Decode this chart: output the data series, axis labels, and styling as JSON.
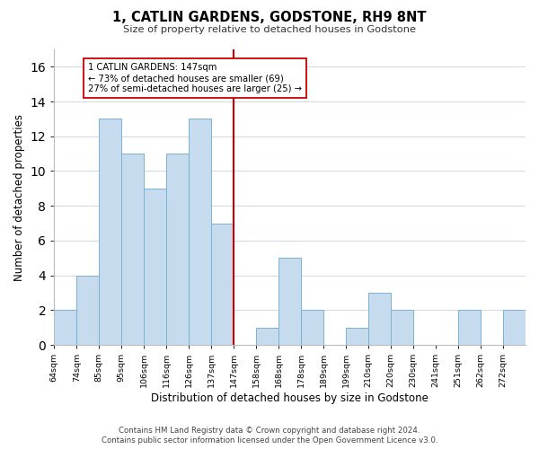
{
  "title": "1, CATLIN GARDENS, GODSTONE, RH9 8NT",
  "subtitle": "Size of property relative to detached houses in Godstone",
  "xlabel": "Distribution of detached houses by size in Godstone",
  "ylabel": "Number of detached properties",
  "bin_labels": [
    "64sqm",
    "74sqm",
    "85sqm",
    "95sqm",
    "106sqm",
    "116sqm",
    "126sqm",
    "137sqm",
    "147sqm",
    "158sqm",
    "168sqm",
    "178sqm",
    "189sqm",
    "199sqm",
    "210sqm",
    "220sqm",
    "230sqm",
    "241sqm",
    "251sqm",
    "262sqm",
    "272sqm"
  ],
  "counts": [
    2,
    4,
    13,
    11,
    9,
    11,
    13,
    7,
    0,
    1,
    5,
    2,
    0,
    1,
    3,
    2,
    0,
    0,
    2,
    0,
    2
  ],
  "marker_index": 8,
  "marker_label": "1 CATLIN GARDENS: 147sqm",
  "annotation_line1": "← 73% of detached houses are smaller (69)",
  "annotation_line2": "27% of semi-detached houses are larger (25) →",
  "bar_color": "#c6dcee",
  "bar_edge_color": "#7ab3d3",
  "marker_color": "#cc0000",
  "annotation_box_edge_color": "#cc0000",
  "ylim": [
    0,
    17
  ],
  "yticks": [
    0,
    2,
    4,
    6,
    8,
    10,
    12,
    14,
    16
  ],
  "footnote1": "Contains HM Land Registry data © Crown copyright and database right 2024.",
  "footnote2": "Contains public sector information licensed under the Open Government Licence v3.0."
}
